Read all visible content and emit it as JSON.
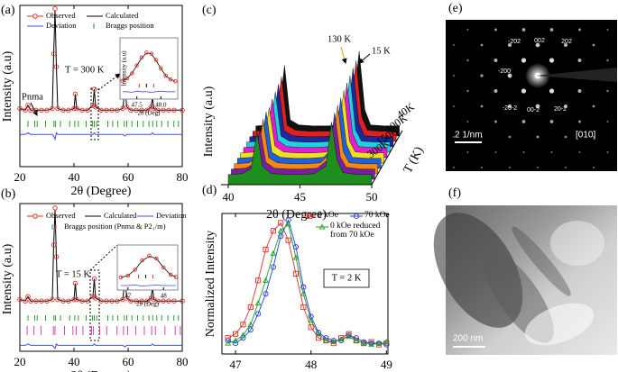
{
  "chart_data": [
    {
      "type": "rietveld",
      "panel_label": "(a)",
      "x_label": "2θ (Degree)",
      "y_label": "Intensity (a.u)",
      "xlim": [
        20,
        80
      ],
      "xticks": [
        20,
        40,
        60,
        80
      ],
      "ylim": [
        0,
        100
      ],
      "annotations": [
        "T = 300 K",
        "Pnma"
      ],
      "x": [
        20,
        22,
        23,
        24,
        26,
        28,
        30,
        32,
        32.5,
        33,
        33.5,
        34,
        36,
        38,
        40,
        40.5,
        41,
        43,
        45,
        47,
        47.5,
        48,
        50,
        52,
        54,
        56,
        58,
        58.9,
        59.5,
        61,
        63,
        65,
        67,
        68.5,
        69,
        69.5,
        71,
        73,
        75,
        77,
        80
      ],
      "series": [
        {
          "name": "Observed",
          "color": "#e0302a",
          "marker": "circle",
          "values": [
            36,
            35,
            38,
            35,
            35,
            35,
            35,
            36,
            70,
            98,
            62,
            36,
            35,
            35,
            36,
            45,
            36,
            35,
            35,
            38,
            48,
            37,
            35,
            35,
            35,
            35,
            36,
            48,
            37,
            35,
            35,
            35,
            35,
            37,
            43,
            36,
            35,
            35,
            35,
            35,
            35
          ]
        },
        {
          "name": "Calculated",
          "color": "#000000",
          "values": [
            36,
            35,
            38,
            35,
            35,
            35,
            35,
            36,
            70,
            97,
            62,
            36,
            35,
            35,
            36,
            45,
            36,
            35,
            35,
            38,
            48,
            37,
            35,
            35,
            35,
            35,
            36,
            48,
            37,
            35,
            35,
            35,
            35,
            37,
            43,
            36,
            35,
            35,
            35,
            35,
            35
          ]
        },
        {
          "name": "Deviation",
          "color": "#3a50e0",
          "values": [
            20,
            20,
            21,
            20,
            20,
            20,
            20,
            20,
            19,
            17,
            21,
            20,
            20,
            20,
            20,
            20,
            20,
            20,
            20,
            20,
            21,
            20,
            20,
            20,
            20,
            20,
            20,
            19,
            20,
            20,
            20,
            20,
            20,
            20,
            21,
            20,
            20,
            20,
            20,
            20,
            20
          ]
        }
      ],
      "bragg": {
        "name": "Braggs position",
        "rows": [
          {
            "color": "#2e9e2e",
            "positions": [
              23,
              25.5,
              26.4,
              29.5,
              32.6,
              33.2,
              35,
              38.4,
              40.3,
              41.6,
              44.5,
              46.8,
              47.5,
              48.4,
              52.5,
              54.3,
              56.2,
              58.6,
              59.5,
              61.4,
              63.5,
              65.6,
              67.7,
              69.1,
              70.6,
              72.4,
              74.7,
              76.9,
              78.6
            ]
          }
        ]
      },
      "inset": {
        "x_label": "2θ (Deg)",
        "y_label": "Intensity (a.u)",
        "xlim": [
          47.15,
          48.35
        ],
        "xticks": [
          47.5,
          {
            "value": 48,
            "label": "48.0"
          }
        ],
        "ylim": [
          0,
          100
        ],
        "x": [
          47.2,
          47.3,
          47.4,
          47.5,
          47.6,
          47.7,
          47.8,
          47.9,
          48.0,
          48.1,
          48.2,
          48.3
        ],
        "series": [
          {
            "color": "#e0302a",
            "marker": "circle",
            "values": [
              30,
              34,
              42,
              55,
              68,
              76,
              74,
              64,
              50,
              38,
              32,
              29
            ]
          },
          {
            "color": "#000000",
            "values": [
              30,
              34,
              42,
              55,
              67,
              75,
              74,
              63,
              50,
              38,
              32,
              29
            ]
          },
          {
            "color": "#3a50e0",
            "values": [
              12,
              12,
              11,
              13,
              12,
              12,
              11,
              12,
              13,
              12,
              12,
              12
            ]
          }
        ],
        "bragg": [
          47.55,
          47.7,
          47.85
        ]
      }
    },
    {
      "type": "rietveld",
      "panel_label": "(b)",
      "x_label": "2θ (Degree)",
      "y_label": "Intensity (a.u)",
      "xlim": [
        20,
        80
      ],
      "xticks": [
        20,
        40,
        60,
        80
      ],
      "ylim": [
        0,
        100
      ],
      "annotations": [
        "T = 15 K"
      ],
      "x": [
        20,
        22,
        23,
        24,
        26,
        28,
        30,
        32,
        32.5,
        33,
        33.5,
        34,
        36,
        38,
        40,
        40.5,
        41,
        43,
        45,
        47,
        47.5,
        48,
        50,
        52,
        54,
        56,
        58,
        58.9,
        59.5,
        61,
        63,
        65,
        67,
        68.5,
        69,
        69.5,
        71,
        73,
        75,
        77,
        80
      ],
      "series": [
        {
          "name": "Observed",
          "color": "#e0302a",
          "marker": "circle",
          "values": [
            35,
            34,
            37,
            34,
            34,
            34,
            34,
            35,
            72,
            97,
            64,
            35,
            34,
            34,
            35,
            46,
            35,
            34,
            34,
            37,
            49,
            36,
            34,
            34,
            34,
            34,
            35,
            49,
            36,
            34,
            34,
            34,
            34,
            36,
            44,
            35,
            34,
            34,
            34,
            34,
            34
          ]
        },
        {
          "name": "Calculated",
          "color": "#000000",
          "values": [
            35,
            34,
            37,
            34,
            34,
            34,
            34,
            35,
            72,
            96,
            64,
            35,
            34,
            34,
            35,
            46,
            35,
            34,
            34,
            37,
            49,
            36,
            34,
            34,
            34,
            34,
            35,
            49,
            36,
            34,
            34,
            34,
            34,
            36,
            44,
            35,
            34,
            34,
            34,
            34,
            34
          ]
        },
        {
          "name": "Deviation",
          "color": "#3a50e0",
          "values": [
            4,
            4,
            5,
            4,
            4,
            4,
            4,
            4,
            3,
            2,
            5,
            4,
            4,
            4,
            4,
            4,
            4,
            4,
            4,
            4,
            5,
            4,
            4,
            4,
            4,
            4,
            4,
            3,
            4,
            4,
            4,
            4,
            4,
            4,
            5,
            4,
            4,
            4,
            4,
            4,
            4
          ]
        }
      ],
      "bragg": {
        "name": "Braggs position (Pnma & P2₁/m)",
        "rows": [
          {
            "color": "#2e9e2e",
            "positions": [
              23,
              25.5,
              26.4,
              29.5,
              32.6,
              33.2,
              35,
              38.4,
              40.3,
              41.6,
              44.5,
              46.8,
              47.5,
              48.4,
              52.5,
              54.3,
              56.2,
              58.6,
              59.5,
              61.4,
              63.5,
              65.6,
              67.7,
              69.1,
              70.6,
              72.4,
              74.7,
              76.9,
              78.6
            ]
          },
          {
            "color": "#e040b0",
            "positions": [
              22.7,
              25.2,
              27.8,
              32.4,
              33.0,
              36.5,
              39.6,
              40.8,
              43.3,
              46.5,
              47.2,
              49.5,
              52.1,
              55.9,
              58.3,
              59.8,
              62.8,
              66.0,
              68.7,
              70.1,
              73.6,
              77.4,
              79.3
            ]
          }
        ]
      },
      "inset": {
        "x_label": "2θ (Deg)",
        "xlim": [
          46.7,
          48.4
        ],
        "xticks": [
          47,
          48
        ],
        "ylim": [
          0,
          100
        ],
        "x": [
          46.8,
          47.0,
          47.2,
          47.4,
          47.6,
          47.8,
          48.0,
          48.2,
          48.35
        ],
        "series": [
          {
            "color": "#e0302a",
            "marker": "circle",
            "values": [
              28,
              32,
              45,
              66,
              76,
              70,
              50,
              34,
              29
            ]
          },
          {
            "color": "#000000",
            "values": [
              28,
              32,
              45,
              65,
              75,
              70,
              50,
              34,
              29
            ]
          },
          {
            "color": "#3a50e0",
            "values": [
              10,
              10,
              11,
              9,
              10,
              11,
              10,
              10,
              10
            ]
          }
        ],
        "bragg": [
          47.3,
          47.5,
          47.7
        ]
      }
    },
    {
      "type": "waterfall",
      "panel_label": "(c)",
      "x_label": "2θ (Degree)",
      "y_label": "Intensity (a.u)",
      "xlim": [
        39.5,
        50
      ],
      "xticks": [
        40,
        45,
        50
      ],
      "ylim": [
        0,
        100
      ],
      "z_label": "T (K)",
      "z_ticks": [
        "40K",
        "100K",
        "150K",
        "300K"
      ],
      "annotations": [
        "130 K",
        "15 K"
      ],
      "x": [
        40,
        41,
        41.6,
        42,
        42.4,
        43,
        44,
        45,
        46,
        46.8,
        47.2,
        47.6,
        48,
        49,
        50
      ],
      "series": [
        {
          "color": "#1e8f1e",
          "values": [
            10,
            11,
            16,
            52,
            18,
            11,
            10,
            10,
            11,
            18,
            62,
            24,
            12,
            10,
            10
          ]
        },
        {
          "color": "#7a1fa0",
          "values": [
            10,
            11,
            15,
            50,
            17,
            11,
            10,
            10,
            11,
            20,
            66,
            22,
            12,
            10,
            10
          ]
        },
        {
          "color": "#f08a10",
          "values": [
            10,
            11,
            16,
            54,
            16,
            11,
            10,
            10,
            11,
            22,
            68,
            22,
            11,
            10,
            10
          ]
        },
        {
          "color": "#2060e0",
          "values": [
            10,
            11,
            17,
            56,
            16,
            11,
            10,
            10,
            11,
            22,
            70,
            24,
            11,
            10,
            10
          ]
        },
        {
          "color": "#f0e020",
          "values": [
            10,
            11,
            17,
            55,
            17,
            11,
            10,
            10,
            11,
            24,
            72,
            22,
            11,
            10,
            10
          ]
        },
        {
          "color": "#e020d0",
          "values": [
            10,
            11,
            18,
            58,
            17,
            11,
            10,
            10,
            11,
            24,
            74,
            24,
            11,
            10,
            10
          ]
        },
        {
          "color": "#20d0e0",
          "values": [
            10,
            11,
            18,
            60,
            16,
            11,
            10,
            10,
            11,
            26,
            76,
            22,
            11,
            10,
            10
          ]
        },
        {
          "color": "#1a2a9a",
          "values": [
            10,
            11,
            18,
            62,
            16,
            11,
            10,
            10,
            11,
            26,
            78,
            24,
            11,
            10,
            10
          ]
        },
        {
          "color": "#e02020",
          "values": [
            10,
            11,
            19,
            64,
            16,
            11,
            10,
            10,
            11,
            28,
            80,
            24,
            11,
            10,
            10
          ]
        },
        {
          "color": "#111111",
          "values": [
            10,
            11,
            20,
            70,
            16,
            11,
            10,
            10,
            11,
            30,
            84,
            26,
            11,
            10,
            10
          ]
        }
      ]
    },
    {
      "type": "line",
      "panel_label": "(d)",
      "x_label": "2θ (Degree)",
      "y_label": "Normalized Intensity",
      "xlim": [
        46.82,
        49.02
      ],
      "xticks": [
        47,
        48,
        49
      ],
      "ylim": [
        0,
        1.05
      ],
      "annotations": [
        "T = 2 K"
      ],
      "x": [
        46.9,
        47.0,
        47.1,
        47.2,
        47.3,
        47.4,
        47.5,
        47.6,
        47.7,
        47.8,
        47.9,
        48.0,
        48.1,
        48.2,
        48.3,
        48.4,
        48.5,
        48.6,
        48.7,
        48.8,
        48.9,
        49.0
      ],
      "series": [
        {
          "name": "0 kOe",
          "color": "#e0302a",
          "marker": "square",
          "values": [
            0.12,
            0.15,
            0.22,
            0.35,
            0.55,
            0.78,
            0.92,
            0.98,
            0.85,
            0.6,
            0.35,
            0.2,
            0.12,
            0.1,
            0.08,
            0.12,
            0.15,
            0.1,
            0.08,
            0.09,
            0.07,
            0.08
          ]
        },
        {
          "name": "70 kOe",
          "color": "#2040e0",
          "marker": "circle",
          "values": [
            0.1,
            0.08,
            0.12,
            0.18,
            0.3,
            0.45,
            0.65,
            0.88,
            1.0,
            0.8,
            0.5,
            0.28,
            0.16,
            0.12,
            0.1,
            0.1,
            0.14,
            0.12,
            0.09,
            0.08,
            0.08,
            0.07
          ]
        },
        {
          "name": "0 kOe reduced from 70 kOe",
          "color": "#20a020",
          "marker": "triangle",
          "values": [
            0.08,
            0.1,
            0.14,
            0.22,
            0.38,
            0.55,
            0.75,
            0.92,
            0.97,
            0.72,
            0.45,
            0.25,
            0.15,
            0.1,
            0.09,
            0.11,
            0.13,
            0.1,
            0.08,
            0.07,
            0.08,
            0.09
          ]
        }
      ]
    }
  ],
  "images": [
    {
      "panel_label": "(e)",
      "spot_labels": [
        "-202",
        "002",
        "202",
        "-200",
        "-20-2",
        "00-2",
        "20-2"
      ],
      "scale_bar": "2 1/nm",
      "zone_axis": "[010]"
    },
    {
      "panel_label": "(f)",
      "scale_bar": "200 nm"
    }
  ]
}
